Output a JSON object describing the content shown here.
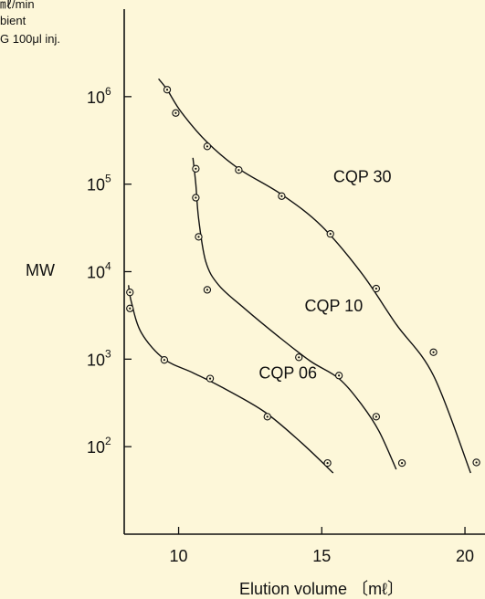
{
  "notes": [
    "㎖/min",
    "bient",
    "G  100μl inj."
  ],
  "colors": {
    "background": "#fdf7d9",
    "ink": "#111111"
  },
  "chart_data": {
    "type": "scatter",
    "title": "",
    "xlabel": "Elution volume 〔mℓ〕",
    "ylabel": "MW",
    "xlim": [
      8.1,
      20.7
    ],
    "ylim": [
      1.0,
      7.0
    ],
    "yscale": "log",
    "x_ticks": [
      10,
      15,
      20
    ],
    "y_ticks": [
      {
        "value": 100,
        "base": "10",
        "exp": "2"
      },
      {
        "value": 1000,
        "base": "10",
        "exp": "3"
      },
      {
        "value": 10000,
        "base": "10",
        "exp": "4"
      },
      {
        "value": 100000,
        "base": "10",
        "exp": "5"
      },
      {
        "value": 1000000,
        "base": "10",
        "exp": "6"
      }
    ],
    "grid": false,
    "legend": "none",
    "series": [
      {
        "name": "CQP 30",
        "label_at": [
          15.4,
          105000
        ],
        "points": [
          [
            9.6,
            1200000
          ],
          [
            9.9,
            650000
          ],
          [
            11.0,
            270000
          ],
          [
            12.1,
            145000
          ],
          [
            13.6,
            73000
          ],
          [
            15.3,
            27000
          ],
          [
            16.9,
            6400
          ],
          [
            18.9,
            1200
          ],
          [
            20.4,
            66
          ]
        ],
        "curve": [
          [
            9.3,
            1600000
          ],
          [
            9.6,
            1200000
          ],
          [
            10.1,
            660000
          ],
          [
            11.0,
            300000
          ],
          [
            12.1,
            150000
          ],
          [
            13.6,
            76000
          ],
          [
            15.0,
            33000
          ],
          [
            16.4,
            9500
          ],
          [
            17.6,
            2500
          ],
          [
            18.9,
            650
          ],
          [
            20.2,
            50
          ]
        ]
      },
      {
        "name": "CQP 10",
        "label_at": [
          14.4,
          3500
        ],
        "points": [
          [
            10.6,
            150000
          ],
          [
            10.6,
            70000
          ],
          [
            10.7,
            25000
          ],
          [
            11.0,
            6200
          ],
          [
            14.2,
            1050
          ],
          [
            15.6,
            650
          ],
          [
            16.9,
            220
          ],
          [
            17.8,
            65
          ]
        ],
        "curve": [
          [
            10.5,
            200000
          ],
          [
            10.6,
            100000
          ],
          [
            10.7,
            40000
          ],
          [
            10.95,
            13000
          ],
          [
            11.4,
            7000
          ],
          [
            12.3,
            3800
          ],
          [
            13.5,
            1800
          ],
          [
            14.6,
            950
          ],
          [
            15.6,
            600
          ],
          [
            16.4,
            300
          ],
          [
            17.0,
            150
          ],
          [
            17.6,
            55
          ]
        ]
      },
      {
        "name": "CQP 06",
        "label_at": [
          12.8,
          600
        ],
        "points": [
          [
            8.3,
            5800
          ],
          [
            8.3,
            3800
          ],
          [
            9.5,
            980
          ],
          [
            11.1,
            600
          ],
          [
            13.1,
            220
          ],
          [
            15.2,
            65
          ]
        ],
        "curve": [
          [
            8.25,
            7000
          ],
          [
            8.35,
            4500
          ],
          [
            8.7,
            2000
          ],
          [
            9.5,
            1000
          ],
          [
            10.5,
            700
          ],
          [
            11.5,
            480
          ],
          [
            13.0,
            250
          ],
          [
            14.3,
            110
          ],
          [
            15.4,
            50
          ]
        ]
      }
    ]
  }
}
